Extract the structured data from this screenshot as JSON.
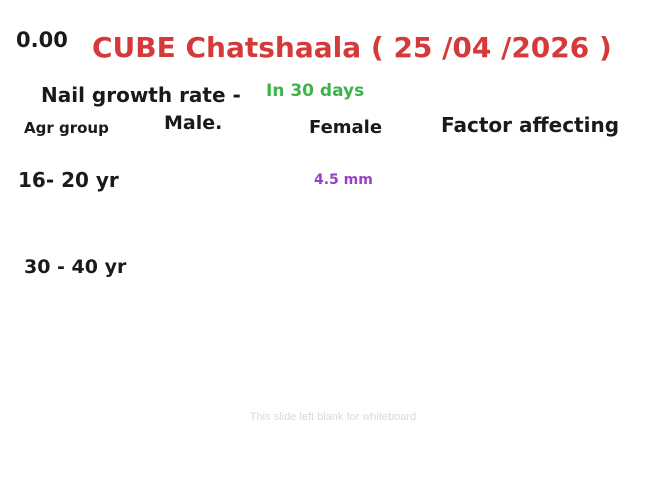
{
  "header": {
    "timer": "0.00",
    "title": "CUBE Chatshaala ( 25 /04 /2026 )",
    "title_color": "#d53a3a"
  },
  "board": {
    "subject": "Nail growth rate -",
    "period": "In 30 days",
    "period_color": "#3cb44b",
    "columns": [
      "Agr group",
      "Male.",
      "Female",
      "Factor affecting"
    ],
    "rows": [
      {
        "age_group": "16- 20 yr",
        "male": "",
        "female": "4.5 mm",
        "factor": ""
      },
      {
        "age_group": "30 - 40 yr",
        "male": "",
        "female": "",
        "factor": ""
      }
    ],
    "value_color": "#9b3fc4"
  },
  "footer": {
    "note": "This slide left blank for whiteboard"
  }
}
